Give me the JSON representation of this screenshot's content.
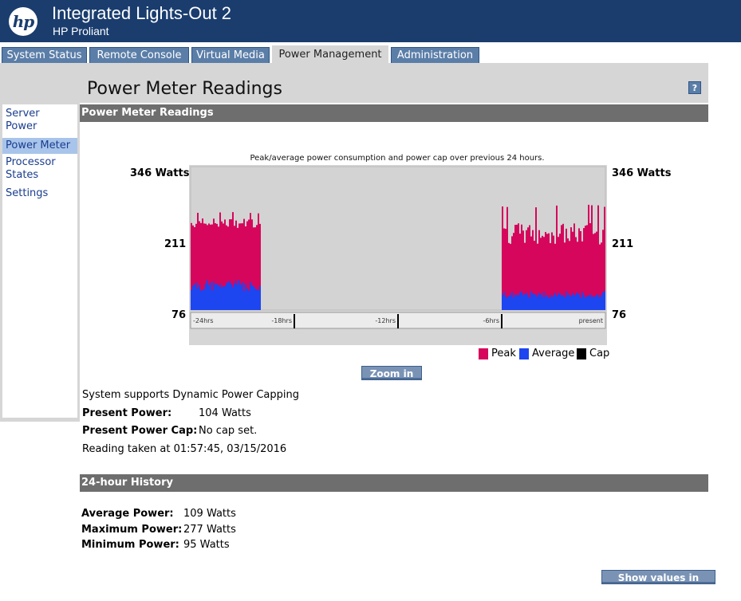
{
  "header": {
    "logo": "hp",
    "title": "Integrated Lights-Out 2",
    "subtitle": "HP Proliant"
  },
  "tabs": [
    {
      "label": "System Status"
    },
    {
      "label": "Remote Console"
    },
    {
      "label": "Virtual Media"
    },
    {
      "label": "Power Management",
      "active": true
    },
    {
      "label": "Administration"
    }
  ],
  "page": {
    "title": "Power Meter Readings",
    "help": "?"
  },
  "sidebar": {
    "items": [
      {
        "label": "Server Power"
      },
      {
        "label": "Power Meter",
        "active": true
      },
      {
        "label": "Processor States"
      },
      {
        "label": "Settings"
      }
    ]
  },
  "readings": {
    "section_title": "Power Meter Readings",
    "supports_text": "System supports Dynamic Power Capping",
    "present_power_label": "Present Power:",
    "present_power_value": "104 Watts",
    "present_cap_label": "Present Power Cap:",
    "present_cap_value": "No cap set.",
    "reading_taken": "Reading taken at 01:57:45, 03/15/2016",
    "zoom_button": "Zoom in"
  },
  "history": {
    "section_title": "24-hour History",
    "average_label": "Average Power:",
    "average_value": "109 Watts",
    "maximum_label": "Maximum Power:",
    "maximum_value": "277 Watts",
    "minimum_label": "Minimum Power:",
    "minimum_value": "95 Watts",
    "btu_button": "Show values in BTU/hr"
  },
  "colors": {
    "peak": "#d6065c",
    "average": "#1d45f0",
    "cap": "#000000",
    "plot_bg": "#d3d3d3"
  },
  "chart_data": {
    "type": "bar",
    "title": "Peak/average power consumption and power cap over previous 24 hours.",
    "y_ticks": [
      "346 Watts",
      "211",
      "76"
    ],
    "ylim": [
      76,
      346
    ],
    "x_ticks": [
      "-24hrs",
      "-18hrs",
      "-12hrs",
      "-6hrs",
      "present"
    ],
    "x_range_hours": [
      -24,
      0
    ],
    "legend": [
      "Peak",
      "Average",
      "Cap"
    ],
    "legend_position": "bottom-right",
    "series": [
      {
        "name": "Peak",
        "segments": [
          {
            "x_start": -24.0,
            "x_end": -20.0,
            "typical": 240,
            "min": 225,
            "max": 263
          },
          {
            "x_start": -6.0,
            "x_end": 0.0,
            "typical": 220,
            "min": 195,
            "max": 277
          }
        ]
      },
      {
        "name": "Average",
        "segments": [
          {
            "x_start": -24.0,
            "x_end": -20.0,
            "typical": 122,
            "min": 100,
            "max": 135
          },
          {
            "x_start": -6.0,
            "x_end": 0.0,
            "typical": 105,
            "min": 98,
            "max": 120
          }
        ]
      }
    ]
  }
}
